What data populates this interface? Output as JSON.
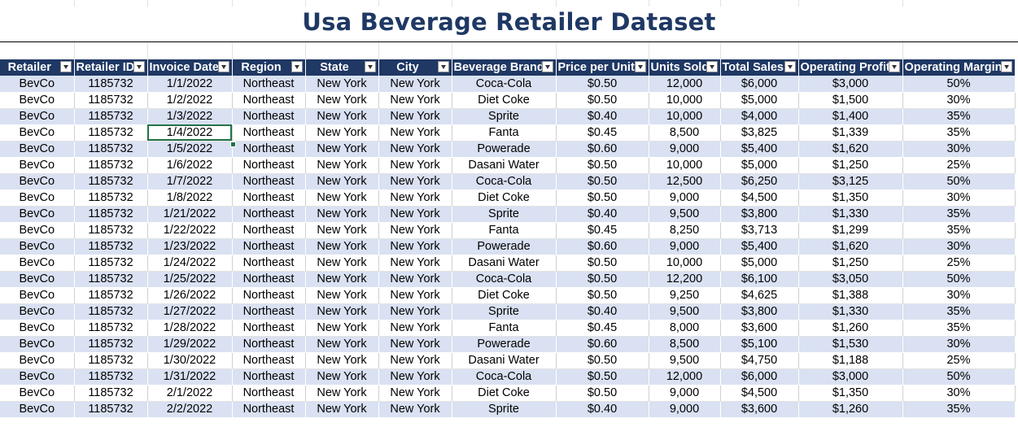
{
  "title": "Usa Beverage Retailer  Dataset",
  "columns": [
    "Retailer",
    "Retailer ID",
    "Invoice Date",
    "Region",
    "State",
    "City",
    "Beverage Brand",
    "Price per Unit",
    "Units Sold",
    "Total Sales",
    "Operating Profit",
    "Operating Margin"
  ],
  "rows": [
    [
      "BevCo",
      "1185732",
      "1/1/2022",
      "Northeast",
      "New York",
      "New York",
      "Coca-Cola",
      "$0.50",
      "12,000",
      "$6,000",
      "$3,000",
      "50%"
    ],
    [
      "BevCo",
      "1185732",
      "1/2/2022",
      "Northeast",
      "New York",
      "New York",
      "Diet Coke",
      "$0.50",
      "10,000",
      "$5,000",
      "$1,500",
      "30%"
    ],
    [
      "BevCo",
      "1185732",
      "1/3/2022",
      "Northeast",
      "New York",
      "New York",
      "Sprite",
      "$0.40",
      "10,000",
      "$4,000",
      "$1,400",
      "35%"
    ],
    [
      "BevCo",
      "1185732",
      "1/4/2022",
      "Northeast",
      "New York",
      "New York",
      "Fanta",
      "$0.45",
      "8,500",
      "$3,825",
      "$1,339",
      "35%"
    ],
    [
      "BevCo",
      "1185732",
      "1/5/2022",
      "Northeast",
      "New York",
      "New York",
      "Powerade",
      "$0.60",
      "9,000",
      "$5,400",
      "$1,620",
      "30%"
    ],
    [
      "BevCo",
      "1185732",
      "1/6/2022",
      "Northeast",
      "New York",
      "New York",
      "Dasani Water",
      "$0.50",
      "10,000",
      "$5,000",
      "$1,250",
      "25%"
    ],
    [
      "BevCo",
      "1185732",
      "1/7/2022",
      "Northeast",
      "New York",
      "New York",
      "Coca-Cola",
      "$0.50",
      "12,500",
      "$6,250",
      "$3,125",
      "50%"
    ],
    [
      "BevCo",
      "1185732",
      "1/8/2022",
      "Northeast",
      "New York",
      "New York",
      "Diet Coke",
      "$0.50",
      "9,000",
      "$4,500",
      "$1,350",
      "30%"
    ],
    [
      "BevCo",
      "1185732",
      "1/21/2022",
      "Northeast",
      "New York",
      "New York",
      "Sprite",
      "$0.40",
      "9,500",
      "$3,800",
      "$1,330",
      "35%"
    ],
    [
      "BevCo",
      "1185732",
      "1/22/2022",
      "Northeast",
      "New York",
      "New York",
      "Fanta",
      "$0.45",
      "8,250",
      "$3,713",
      "$1,299",
      "35%"
    ],
    [
      "BevCo",
      "1185732",
      "1/23/2022",
      "Northeast",
      "New York",
      "New York",
      "Powerade",
      "$0.60",
      "9,000",
      "$5,400",
      "$1,620",
      "30%"
    ],
    [
      "BevCo",
      "1185732",
      "1/24/2022",
      "Northeast",
      "New York",
      "New York",
      "Dasani Water",
      "$0.50",
      "10,000",
      "$5,000",
      "$1,250",
      "25%"
    ],
    [
      "BevCo",
      "1185732",
      "1/25/2022",
      "Northeast",
      "New York",
      "New York",
      "Coca-Cola",
      "$0.50",
      "12,200",
      "$6,100",
      "$3,050",
      "50%"
    ],
    [
      "BevCo",
      "1185732",
      "1/26/2022",
      "Northeast",
      "New York",
      "New York",
      "Diet Coke",
      "$0.50",
      "9,250",
      "$4,625",
      "$1,388",
      "30%"
    ],
    [
      "BevCo",
      "1185732",
      "1/27/2022",
      "Northeast",
      "New York",
      "New York",
      "Sprite",
      "$0.40",
      "9,500",
      "$3,800",
      "$1,330",
      "35%"
    ],
    [
      "BevCo",
      "1185732",
      "1/28/2022",
      "Northeast",
      "New York",
      "New York",
      "Fanta",
      "$0.45",
      "8,000",
      "$3,600",
      "$1,260",
      "35%"
    ],
    [
      "BevCo",
      "1185732",
      "1/29/2022",
      "Northeast",
      "New York",
      "New York",
      "Powerade",
      "$0.60",
      "8,500",
      "$5,100",
      "$1,530",
      "30%"
    ],
    [
      "BevCo",
      "1185732",
      "1/30/2022",
      "Northeast",
      "New York",
      "New York",
      "Dasani Water",
      "$0.50",
      "9,500",
      "$4,750",
      "$1,188",
      "25%"
    ],
    [
      "BevCo",
      "1185732",
      "1/31/2022",
      "Northeast",
      "New York",
      "New York",
      "Coca-Cola",
      "$0.50",
      "12,000",
      "$6,000",
      "$3,000",
      "50%"
    ],
    [
      "BevCo",
      "1185732",
      "2/1/2022",
      "Northeast",
      "New York",
      "New York",
      "Diet Coke",
      "$0.50",
      "9,000",
      "$4,500",
      "$1,350",
      "30%"
    ],
    [
      "BevCo",
      "1185732",
      "2/2/2022",
      "Northeast",
      "New York",
      "New York",
      "Sprite",
      "$0.40",
      "9,000",
      "$3,600",
      "$1,260",
      "35%"
    ]
  ],
  "selected_cell": {
    "row": 3,
    "col": 2
  },
  "colors": {
    "header_bg": "#1f3864",
    "band": "#d9e1f2",
    "title": "#1f3864",
    "selection": "#217346"
  }
}
